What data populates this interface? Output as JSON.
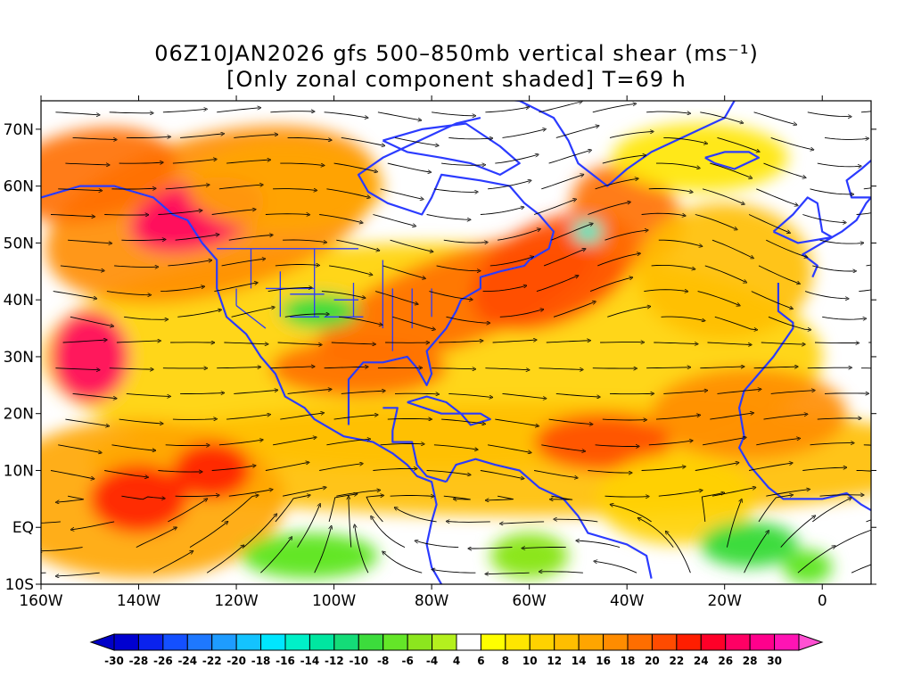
{
  "title_line_1": "06Z10JAN2026 gfs 500–850mb vertical shear (ms⁻¹)",
  "title_line_2": "[Only zonal component shaded] T=69 h",
  "map": {
    "lon_range": [
      -160,
      10
    ],
    "lat_range": [
      -10,
      75
    ],
    "lon_ticks": [
      {
        "value": -160,
        "label": "160W"
      },
      {
        "value": -140,
        "label": "140W"
      },
      {
        "value": -120,
        "label": "120W"
      },
      {
        "value": -100,
        "label": "100W"
      },
      {
        "value": -80,
        "label": "80W"
      },
      {
        "value": -60,
        "label": "60W"
      },
      {
        "value": -40,
        "label": "40W"
      },
      {
        "value": -20,
        "label": "20W"
      },
      {
        "value": 0,
        "label": "0"
      }
    ],
    "lat_ticks": [
      {
        "value": 70,
        "label": "70N"
      },
      {
        "value": 60,
        "label": "60N"
      },
      {
        "value": 50,
        "label": "50N"
      },
      {
        "value": 40,
        "label": "40N"
      },
      {
        "value": 30,
        "label": "30N"
      },
      {
        "value": 20,
        "label": "20N"
      },
      {
        "value": 10,
        "label": "10N"
      },
      {
        "value": 0,
        "label": "EQ"
      },
      {
        "value": -10,
        "label": "10S"
      }
    ],
    "coastline_color": "#2b3bff",
    "streamline_color": "#000000"
  },
  "colorbar": {
    "levels": [
      {
        "label": "-30",
        "color": "#0000d0"
      },
      {
        "label": "-28",
        "color": "#0a22ee"
      },
      {
        "label": "-26",
        "color": "#1450ff"
      },
      {
        "label": "-24",
        "color": "#1e78ff"
      },
      {
        "label": "-22",
        "color": "#1e9cff"
      },
      {
        "label": "-20",
        "color": "#14c3ff"
      },
      {
        "label": "-18",
        "color": "#00e6ff"
      },
      {
        "label": "-16",
        "color": "#00f0c8"
      },
      {
        "label": "-14",
        "color": "#00e6a0"
      },
      {
        "label": "-12",
        "color": "#14dc78"
      },
      {
        "label": "-10",
        "color": "#3cdc3c"
      },
      {
        "label": "-8",
        "color": "#64e628"
      },
      {
        "label": "-6",
        "color": "#8ce61e"
      },
      {
        "label": "-4",
        "color": "#b4f01e"
      },
      {
        "label": "4",
        "color": "#ffffff"
      },
      {
        "label": "6",
        "color": "#ffff00"
      },
      {
        "label": "8",
        "color": "#ffe600"
      },
      {
        "label": "10",
        "color": "#ffd200"
      },
      {
        "label": "12",
        "color": "#ffbe00"
      },
      {
        "label": "14",
        "color": "#ffa500"
      },
      {
        "label": "16",
        "color": "#ff8c00"
      },
      {
        "label": "18",
        "color": "#ff6e00"
      },
      {
        "label": "20",
        "color": "#ff4b00"
      },
      {
        "label": "22",
        "color": "#ff1e00"
      },
      {
        "label": "24",
        "color": "#ff0028"
      },
      {
        "label": "26",
        "color": "#ff0064"
      },
      {
        "label": "28",
        "color": "#ff008c"
      },
      {
        "label": "30",
        "color": "#ff14b4"
      }
    ],
    "end_colors": {
      "low": "#0000c8",
      "high": "#ff50d2"
    }
  }
}
